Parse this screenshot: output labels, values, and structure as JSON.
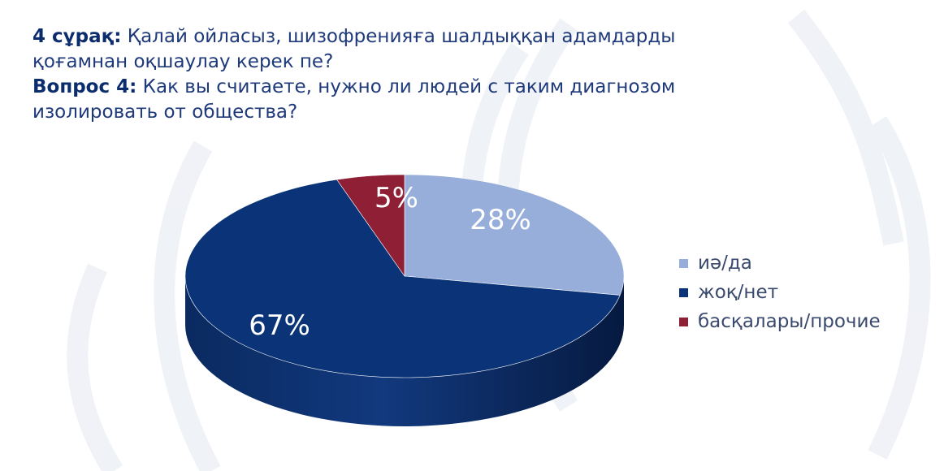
{
  "title": {
    "q_kz_prefix": "4 сұрақ:",
    "q_kz_text": "Қалай ойласыз, шизофренияға шалдыққан адамдарды",
    "q_kz_text2": "қоғамнан оқшаулау керек пе?",
    "q_ru_prefix": "Вопрос 4:",
    "q_ru_text": "Как вы считаете, нужно ли людей с таким диагнозом",
    "q_ru_text2": "изолировать от общества?"
  },
  "chart_data": {
    "type": "pie",
    "style": "3d",
    "legend_position": "right",
    "categories": [
      "иә/да",
      "жоқ/нет",
      "басқалары/прочие"
    ],
    "values": [
      28,
      67,
      5
    ],
    "data_labels": [
      "28%",
      "67%",
      "5%"
    ],
    "colors": [
      "#98AEDA",
      "#0B3478",
      "#8E1F35"
    ]
  }
}
